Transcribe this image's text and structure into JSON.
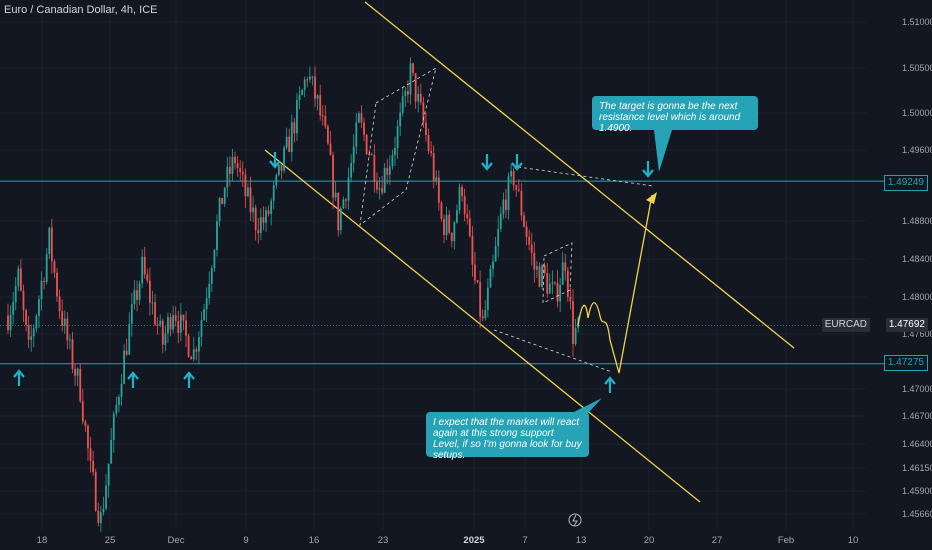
{
  "header": {
    "title": "Euro / Canadian Dollar, 4h, ICE"
  },
  "colors": {
    "background": "#131722",
    "up": "#26a69a",
    "down": "#ef5350",
    "channel": "#f0d54a",
    "level": "#1ea5b5",
    "arrow": "#1eb4c8",
    "callout": "#26a3b6",
    "axis_text": "#a3a6af"
  },
  "callouts": {
    "target": "The target is gonna be the next resistance level which is around 1.4900.",
    "support": "I expect that the market will react again at this strong support Level, if so I'm gonna look for buy setups."
  },
  "price_tags": {
    "resistance": "1.49249",
    "current_symbol": "EURCAD",
    "current": "1.47692",
    "support": "1.47275"
  },
  "chart_data": {
    "type": "candlestick",
    "symbol": "EURCAD",
    "timeframe": "4h",
    "title": "Euro / Canadian Dollar, 4h, ICE",
    "y_ticks": [
      1.51,
      1.505,
      1.5,
      1.496,
      1.488,
      1.484,
      1.48,
      1.476,
      1.47,
      1.467,
      1.464,
      1.4615,
      1.459,
      1.4566
    ],
    "y_tick_labels": [
      "1.51000",
      "1.50500",
      "1.50000",
      "1.49600",
      "1.48800",
      "1.48400",
      "1.48000",
      "1.47600",
      "1.47000",
      "1.46700",
      "1.46400",
      "1.46150",
      "1.45900",
      "1.45660"
    ],
    "x_tick_labels": [
      "18",
      "25",
      "Dec",
      "9",
      "16",
      "23",
      "2025",
      "7",
      "13",
      "20",
      "27",
      "Feb",
      "10"
    ],
    "support_level": 1.47275,
    "resistance_level": 1.49249,
    "last_price": 1.47692,
    "target": 1.49,
    "path_points": [
      [
        0,
        1.478
      ],
      [
        4,
        1.482
      ],
      [
        8,
        1.474
      ],
      [
        12,
        1.48
      ],
      [
        16,
        1.486
      ],
      [
        20,
        1.479
      ],
      [
        24,
        1.474
      ],
      [
        28,
        1.47
      ],
      [
        32,
        1.461
      ],
      [
        36,
        1.456
      ],
      [
        40,
        1.464
      ],
      [
        44,
        1.472
      ],
      [
        48,
        1.478
      ],
      [
        52,
        1.483
      ],
      [
        56,
        1.479
      ],
      [
        60,
        1.475
      ],
      [
        64,
        1.479
      ],
      [
        68,
        1.476
      ],
      [
        72,
        1.474
      ],
      [
        76,
        1.479
      ],
      [
        80,
        1.486
      ],
      [
        84,
        1.492
      ],
      [
        88,
        1.495
      ],
      [
        92,
        1.491
      ],
      [
        96,
        1.488
      ],
      [
        100,
        1.488
      ],
      [
        104,
        1.492
      ],
      [
        108,
        1.496
      ],
      [
        112,
        1.5
      ],
      [
        116,
        1.5045
      ],
      [
        120,
        1.501
      ],
      [
        124,
        1.496
      ],
      [
        128,
        1.488
      ],
      [
        132,
        1.493
      ],
      [
        136,
        1.499
      ],
      [
        140,
        1.496
      ],
      [
        144,
        1.492
      ],
      [
        148,
        1.495
      ],
      [
        152,
        1.499
      ],
      [
        156,
        1.5045
      ],
      [
        160,
        1.5
      ],
      [
        164,
        1.495
      ],
      [
        168,
        1.488
      ],
      [
        172,
        1.487
      ],
      [
        176,
        1.492
      ],
      [
        180,
        1.483
      ],
      [
        184,
        1.477
      ],
      [
        188,
        1.483
      ],
      [
        192,
        1.49
      ],
      [
        196,
        1.493
      ],
      [
        200,
        1.488
      ],
      [
        204,
        1.483
      ],
      [
        208,
        1.482
      ],
      [
        212,
        1.48
      ],
      [
        216,
        1.484
      ],
      [
        219,
        1.476
      ],
      [
        221,
        1.4765
      ]
    ]
  }
}
